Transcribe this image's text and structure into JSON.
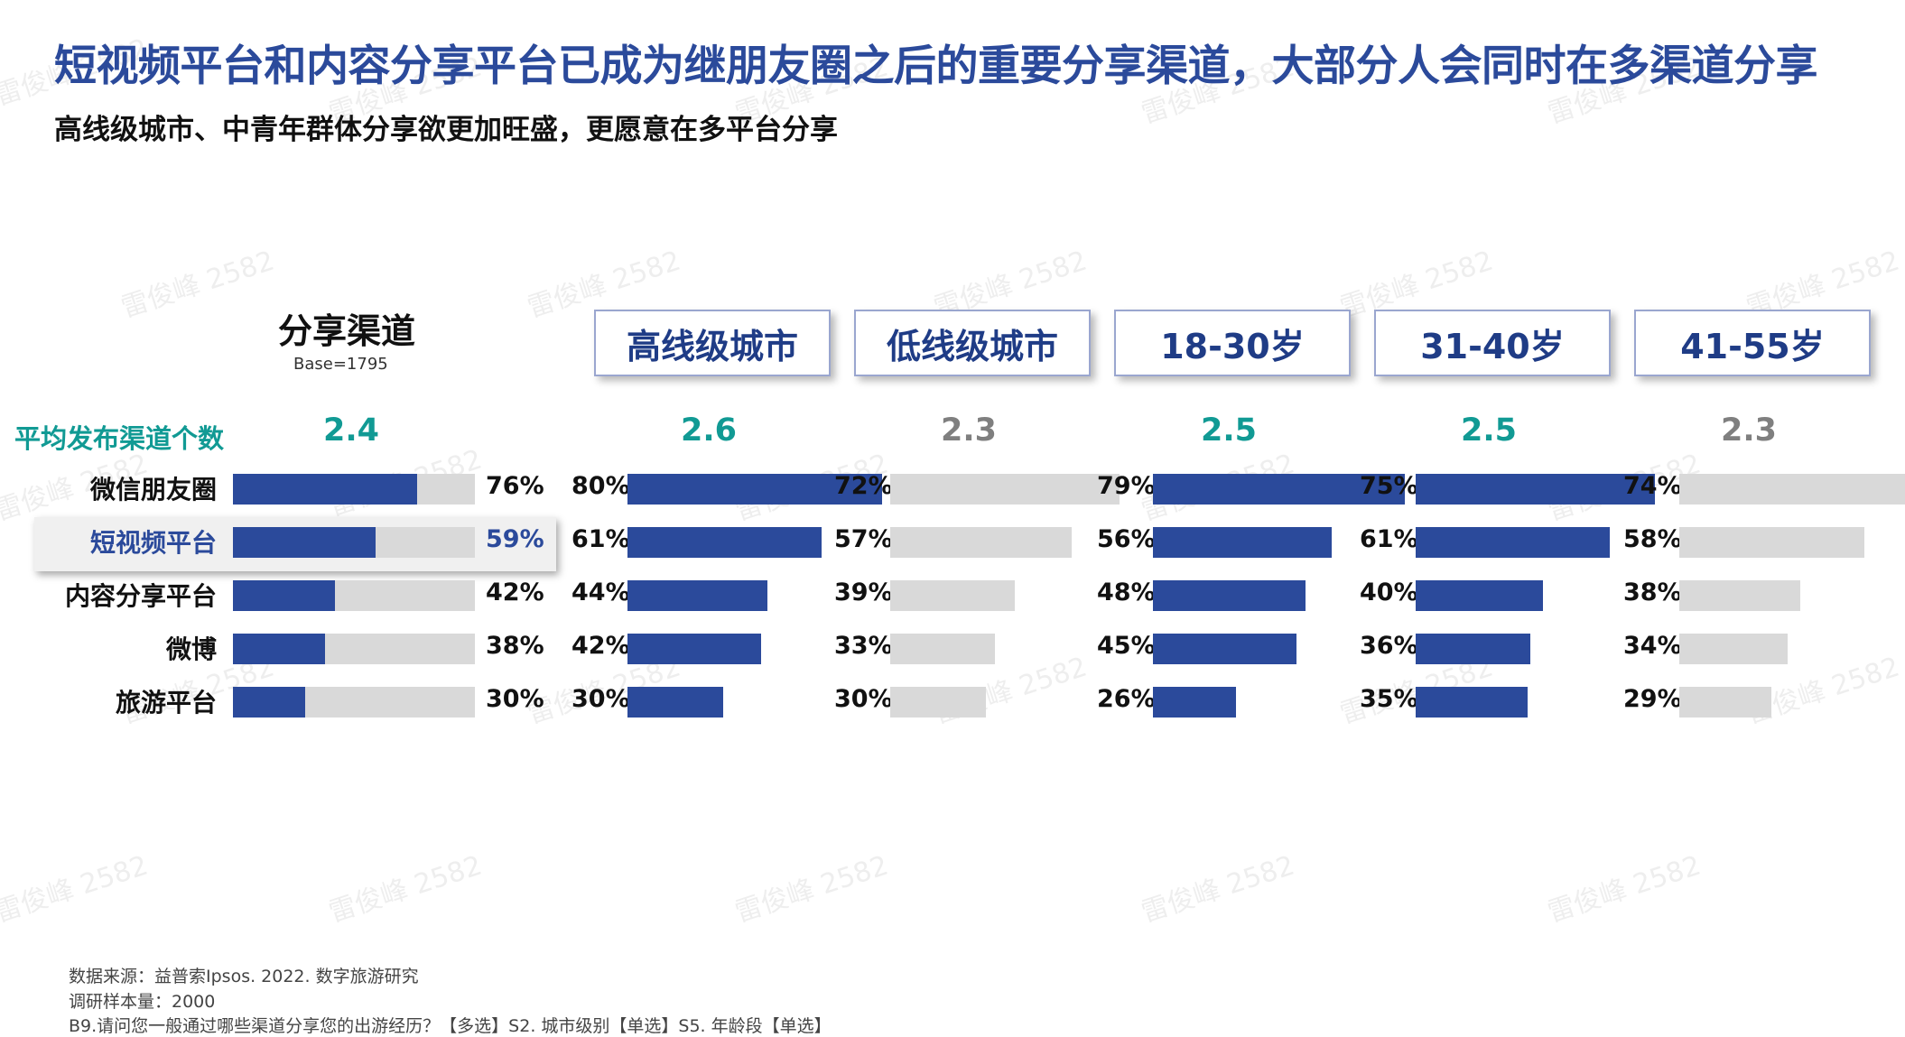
{
  "title": "短视频平台和内容分享平台已成为继朋友圈之后的重要分享渠道，大部分人会同时在多渠道分享",
  "subtitle": "高线级城市、中青年群体分享欲更加旺盛，更愿意在多平台分享",
  "watermark_text": "雷俊峰 2582",
  "colors": {
    "accent": "#2b4a9b",
    "bar_track": "#d9d9d9",
    "teal": "#119a94",
    "gray_value": "#7f7f7f"
  },
  "overall": {
    "heading": "分享渠道",
    "base": "Base=1795",
    "avg_label": "平均发布渠道个数",
    "avg_value": "2.4"
  },
  "footer": {
    "source": "数据来源：益普索Ipsos. 2022. 数字旅游研究",
    "sample": "调研样本量：2000",
    "questions": "B9.请问您一般通过哪些渠道分享您的出游经历？【多选】S2. 城市级别【单选】S5. 年龄段【单选】"
  },
  "chart_data": {
    "type": "bar",
    "orientation": "horizontal",
    "categories": [
      "微信朋友圈",
      "短视频平台",
      "内容分享平台",
      "微博",
      "旅游平台"
    ],
    "highlighted_category": "短视频平台",
    "unit": "%",
    "overall": {
      "values": [
        76,
        59,
        42,
        38,
        30
      ],
      "labels": [
        "76%",
        "59%",
        "42%",
        "38%",
        "30%"
      ]
    },
    "segments": [
      {
        "name": "高线级城市",
        "avg": "2.6",
        "avg_color": "#119a94",
        "bar_color": "#2b4a9b",
        "values": [
          80,
          61,
          44,
          42,
          30
        ],
        "labels": [
          "80%",
          "61%",
          "44%",
          "42%",
          "30%"
        ]
      },
      {
        "name": "低线级城市",
        "avg": "2.3",
        "avg_color": "#7f7f7f",
        "bar_color": "#d9d9d9",
        "values": [
          72,
          57,
          39,
          33,
          30
        ],
        "labels": [
          "72%",
          "57%",
          "39%",
          "33%",
          "30%"
        ]
      },
      {
        "name": "18-30岁",
        "avg": "2.5",
        "avg_color": "#119a94",
        "bar_color": "#2b4a9b",
        "values": [
          79,
          56,
          48,
          45,
          26
        ],
        "labels": [
          "79%",
          "56%",
          "48%",
          "45%",
          "26%"
        ]
      },
      {
        "name": "31-40岁",
        "avg": "2.5",
        "avg_color": "#119a94",
        "bar_color": "#2b4a9b",
        "values": [
          75,
          61,
          40,
          36,
          35
        ],
        "labels": [
          "75%",
          "61%",
          "40%",
          "36%",
          "35%"
        ]
      },
      {
        "name": "41-55岁",
        "avg": "2.3",
        "avg_color": "#7f7f7f",
        "bar_color": "#d9d9d9",
        "values": [
          74,
          58,
          38,
          34,
          29
        ],
        "labels": [
          "74%",
          "58%",
          "38%",
          "34%",
          "29%"
        ]
      }
    ]
  }
}
